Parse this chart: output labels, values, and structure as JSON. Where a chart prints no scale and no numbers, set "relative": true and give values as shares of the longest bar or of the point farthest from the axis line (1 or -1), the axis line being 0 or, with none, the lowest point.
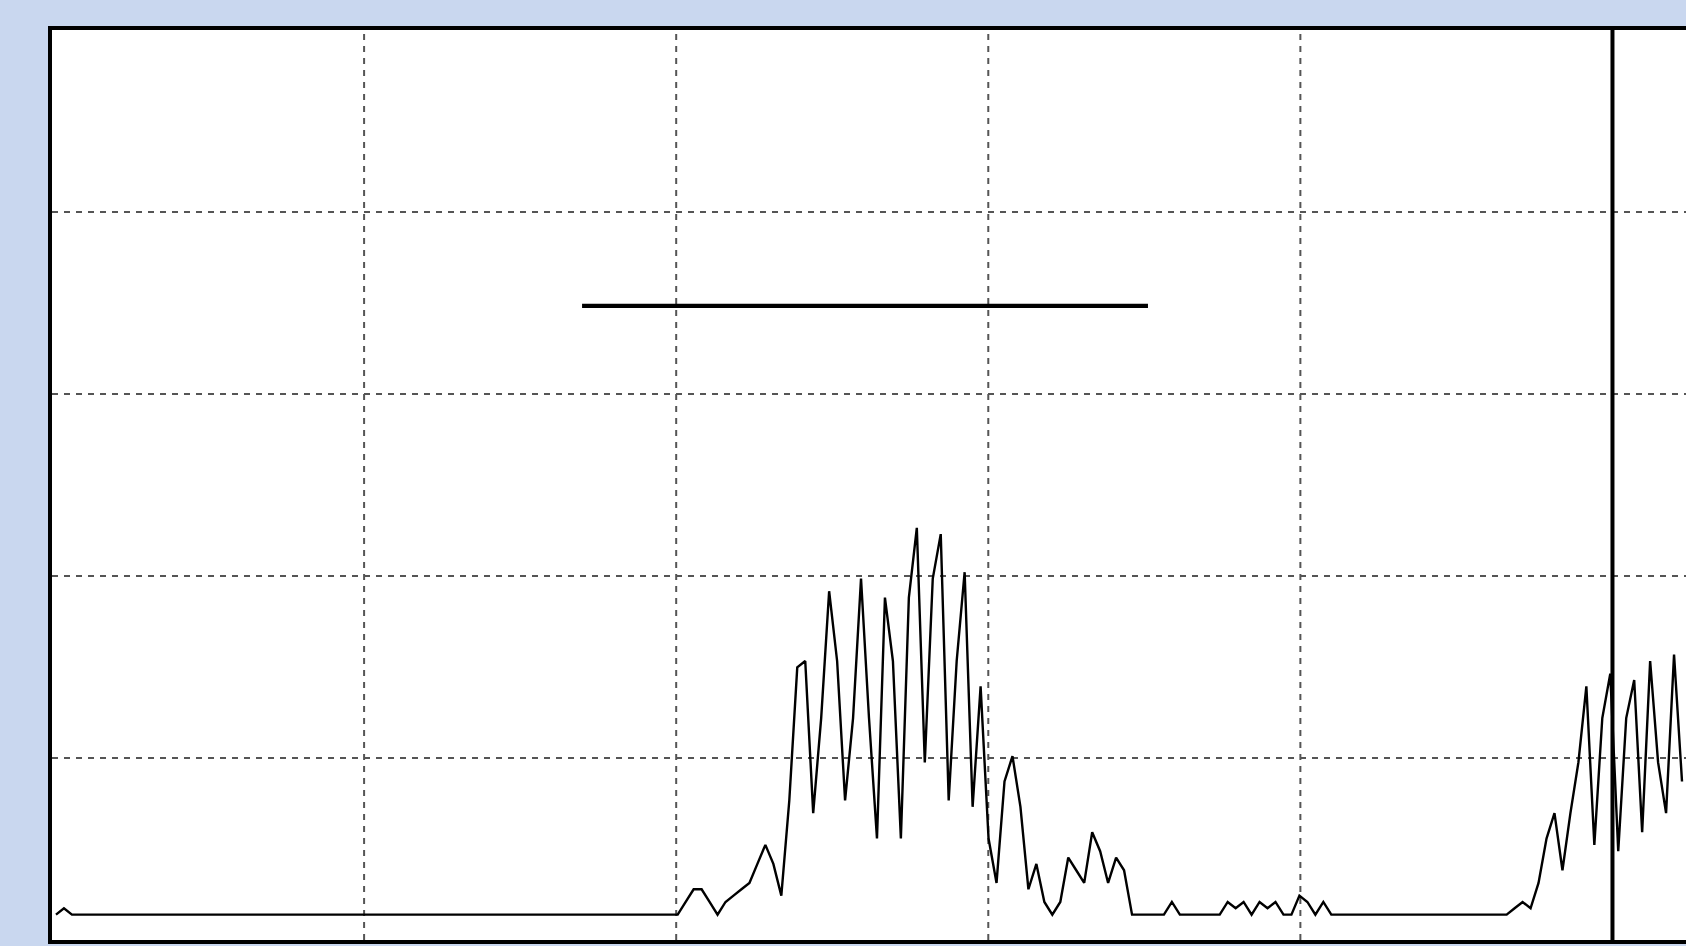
{
  "chart_data": {
    "type": "line",
    "relative": true,
    "grid": true,
    "marker": "none",
    "line_style": "solid",
    "categories": [
      null,
      null,
      null,
      null,
      null,
      null,
      null,
      null,
      null,
      null,
      null,
      null,
      null,
      null,
      null,
      null,
      null,
      null,
      null,
      null,
      null,
      null,
      null,
      null,
      null,
      null,
      null,
      null,
      null,
      null,
      null,
      null,
      null,
      null,
      null,
      null,
      null,
      null,
      null,
      null,
      null,
      null,
      null,
      null,
      null,
      null,
      null,
      null,
      null,
      null,
      null,
      null,
      null,
      null,
      null,
      null,
      null,
      null,
      null,
      null,
      null,
      null,
      null,
      null,
      null,
      null,
      null,
      null,
      null,
      null,
      null,
      null,
      null,
      null,
      null,
      null,
      null,
      null,
      null,
      null,
      null,
      null,
      null,
      null,
      null,
      null,
      null,
      null,
      null,
      null,
      null,
      null,
      null,
      null,
      null,
      null,
      null,
      null,
      null,
      null,
      null,
      null,
      null,
      null,
      null,
      null,
      null,
      null,
      null,
      null,
      null,
      null,
      null,
      null,
      null,
      null,
      null,
      null,
      null,
      null,
      null,
      null,
      null,
      null,
      null,
      null,
      null,
      null,
      null,
      null,
      null,
      null,
      null,
      null,
      null,
      null,
      null,
      null,
      null,
      null,
      null,
      null,
      null,
      null,
      null,
      null,
      null,
      null,
      null,
      null,
      null,
      null,
      null,
      null,
      null,
      null,
      null,
      null,
      null,
      null,
      null,
      null,
      null,
      null,
      null,
      null,
      null,
      null,
      null,
      null,
      null,
      null,
      null,
      null,
      null,
      null,
      null,
      null,
      null,
      null,
      null,
      null,
      null,
      null,
      null,
      null,
      null,
      null,
      null,
      null,
      null,
      null,
      null,
      null,
      null,
      null,
      null,
      null,
      null,
      null,
      null,
      null,
      null,
      null,
      null
    ],
    "series": [
      {
        "color": "#000000",
        "values": [
          0.04,
          0.05,
          0.04,
          0.04,
          0.04,
          0.04,
          0.04,
          0.04,
          0.04,
          0.04,
          0.04,
          0.04,
          0.04,
          0.04,
          0.04,
          0.04,
          0.04,
          0.04,
          0.04,
          0.04,
          0.04,
          0.04,
          0.04,
          0.04,
          0.04,
          0.04,
          0.04,
          0.04,
          0.04,
          0.04,
          0.04,
          0.04,
          0.04,
          0.04,
          0.04,
          0.04,
          0.04,
          0.04,
          0.04,
          0.04,
          0.04,
          0.04,
          0.04,
          0.04,
          0.04,
          0.04,
          0.04,
          0.04,
          0.04,
          0.04,
          0.04,
          0.04,
          0.04,
          0.04,
          0.04,
          0.04,
          0.04,
          0.04,
          0.04,
          0.04,
          0.04,
          0.04,
          0.04,
          0.04,
          0.04,
          0.04,
          0.04,
          0.04,
          0.04,
          0.04,
          0.04,
          0.04,
          0.04,
          0.04,
          0.04,
          0.04,
          0.04,
          0.04,
          0.04,
          0.06,
          0.08,
          0.08,
          0.06,
          0.04,
          0.06,
          0.07,
          0.08,
          0.09,
          0.12,
          0.15,
          0.12,
          0.07,
          0.22,
          0.43,
          0.44,
          0.2,
          0.35,
          0.55,
          0.44,
          0.22,
          0.35,
          0.57,
          0.35,
          0.16,
          0.54,
          0.44,
          0.16,
          0.54,
          0.65,
          0.28,
          0.57,
          0.64,
          0.22,
          0.44,
          0.58,
          0.21,
          0.4,
          0.16,
          0.09,
          0.25,
          0.29,
          0.21,
          0.08,
          0.12,
          0.06,
          0.04,
          0.06,
          0.13,
          0.11,
          0.09,
          0.17,
          0.14,
          0.09,
          0.13,
          0.11,
          0.04,
          0.04,
          0.04,
          0.04,
          0.04,
          0.06,
          0.04,
          0.04,
          0.04,
          0.04,
          0.04,
          0.04,
          0.06,
          0.05,
          0.06,
          0.04,
          0.06,
          0.05,
          0.06,
          0.04,
          0.04,
          0.07,
          0.06,
          0.04,
          0.06,
          0.04,
          0.04,
          0.04,
          0.04,
          0.04,
          0.04,
          0.04,
          0.04,
          0.04,
          0.04,
          0.04,
          0.04,
          0.04,
          0.04,
          0.04,
          0.04,
          0.04,
          0.04,
          0.04,
          0.04,
          0.04,
          0.04,
          0.04,
          0.05,
          0.06,
          0.05,
          0.09,
          0.16,
          0.2,
          0.11,
          0.2,
          0.28,
          0.4,
          0.15,
          0.35,
          0.42,
          0.14,
          0.35,
          0.41,
          0.17,
          0.44,
          0.28,
          0.2,
          0.45,
          0.25
        ]
      },
      {
        "color": "#000000",
        "values": [
          null,
          null,
          null,
          null,
          null,
          null,
          null,
          null,
          null,
          null,
          null,
          null,
          null,
          null,
          null,
          null,
          null,
          null,
          null,
          null,
          null,
          null,
          null,
          null,
          null,
          null,
          null,
          null,
          null,
          null,
          null,
          null,
          null,
          null,
          null,
          null,
          null,
          null,
          null,
          null,
          null,
          null,
          null,
          null,
          null,
          null,
          null,
          null,
          null,
          null,
          null,
          null,
          null,
          null,
          null,
          null,
          null,
          null,
          null,
          null,
          null,
          null,
          null,
          null,
          null,
          null,
          1.0,
          1,
          1,
          1,
          1,
          1,
          1,
          1,
          1,
          1,
          1,
          1,
          1,
          1,
          1,
          1,
          1,
          1,
          1,
          1,
          1,
          1,
          1,
          1,
          1,
          1,
          1,
          1,
          1,
          1,
          1,
          1,
          1,
          1,
          1,
          1,
          1,
          1,
          1,
          1,
          1,
          1,
          1,
          1,
          1,
          1,
          1,
          1,
          1,
          1,
          1,
          1,
          1,
          1,
          1,
          1,
          1,
          1,
          1,
          1,
          1,
          1,
          1,
          1,
          1,
          1,
          1,
          1,
          1,
          1,
          1,
          1,
          null,
          null,
          null,
          null,
          null,
          null,
          null,
          null,
          null,
          null,
          null,
          null,
          null,
          null,
          null,
          null,
          null,
          null,
          null,
          null,
          null,
          null,
          null,
          null,
          null,
          null,
          null,
          null,
          null,
          null,
          null,
          null,
          null,
          null,
          null,
          null,
          null,
          null,
          null,
          null,
          null,
          null,
          null,
          null,
          null,
          null,
          null,
          null,
          null,
          null,
          null,
          null,
          null,
          null,
          null,
          null,
          null,
          null,
          null,
          null,
          null,
          null,
          null,
          null,
          null,
          null,
          null
        ]
      }
    ]
  }
}
